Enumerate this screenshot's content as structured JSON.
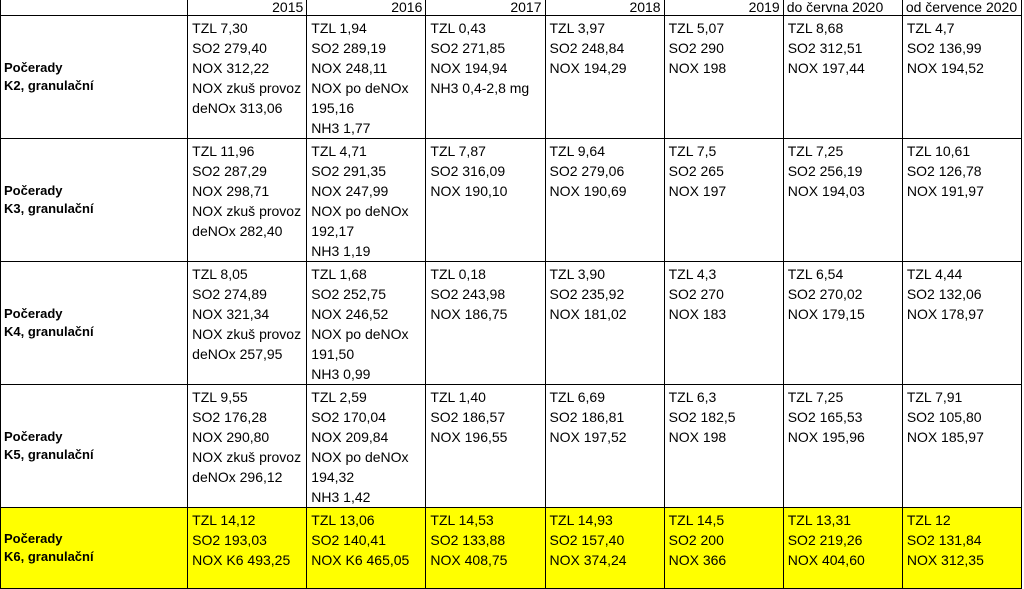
{
  "header": {
    "years": [
      "2015",
      "2016",
      "2017",
      "2018",
      "2019"
    ],
    "period1": "do června 2020",
    "period2": "od července 2020"
  },
  "rows": [
    {
      "label": [
        "Počerady",
        "K2, granulační"
      ],
      "cells": [
        [
          "TZL 7,30",
          "SO2 279,40",
          "NOX 312,22",
          "NOX zkuš provoz",
          "deNOx 313,06"
        ],
        [
          "TZL 1,94",
          "SO2 289,19",
          "NOX 248,11",
          "NOX po deNOx",
          "195,16",
          "NH3 1,77"
        ],
        [
          "TZL 0,43",
          "SO2 271,85",
          "NOX 194,94",
          "NH3 0,4-2,8 mg"
        ],
        [
          "TZL 3,97",
          "SO2 248,84",
          "NOX 194,29"
        ],
        [
          "TZL 5,07",
          "SO2 290",
          "NOX 198"
        ],
        [
          "TZL 8,68",
          "SO2 312,51",
          "NOX 197,44"
        ],
        [
          "TZL 4,7",
          "SO2 136,99",
          "NOX 194,52"
        ]
      ]
    },
    {
      "label": [
        "Počerady",
        "K3, granulační"
      ],
      "cells": [
        [
          "TZL 11,96",
          "SO2 287,29",
          "NOX 298,71",
          "NOX zkuš provoz",
          "deNOx 282,40"
        ],
        [
          "TZL 4,71",
          "SO2 291,35",
          "NOX 247,99",
          "NOX po deNOx",
          "192,17",
          "NH3 1,19"
        ],
        [
          "TZL 7,87",
          "SO2 316,09",
          "NOX 190,10"
        ],
        [
          "TZL 9,64",
          "SO2 279,06",
          "NOX 190,69"
        ],
        [
          "TZL 7,5",
          "SO2 265",
          "NOX 197"
        ],
        [
          "TZL 7,25",
          "SO2 256,19",
          "NOX 194,03"
        ],
        [
          "TZL 10,61",
          "SO2 126,78",
          "NOX 191,97"
        ]
      ]
    },
    {
      "label": [
        "Počerady",
        "K4, granulační"
      ],
      "cells": [
        [
          "TZL 8,05",
          "SO2 274,89",
          "NOX 321,34",
          "NOX zkuš provoz",
          "deNOx 257,95"
        ],
        [
          "TZL 1,68",
          "SO2 252,75",
          "NOX 246,52",
          "NOX po deNOx",
          "191,50",
          "NH3 0,99"
        ],
        [
          "TZL 0,18",
          "SO2 243,98",
          "NOX 186,75"
        ],
        [
          "TZL 3,90",
          "SO2 235,92",
          "NOX 181,02"
        ],
        [
          "TZL 4,3",
          "SO2 270",
          "NOX 183"
        ],
        [
          "TZL 6,54",
          "SO2 270,02",
          "NOX 179,15"
        ],
        [
          "TZL 4,44",
          "SO2 132,06",
          "NOX 178,97"
        ]
      ]
    },
    {
      "label": [
        "Počerady",
        "K5, granulační"
      ],
      "cells": [
        [
          "TZL 9,55",
          "SO2 176,28",
          "NOX 290,80",
          "NOX zkuš provoz",
          "deNOx 296,12"
        ],
        [
          "TZL 2,59",
          "SO2 170,04",
          "NOX 209,84",
          "NOX po deNOx",
          "194,32",
          "NH3 1,42"
        ],
        [
          "TZL 1,40",
          "SO2 186,57",
          "NOX 196,55"
        ],
        [
          "TZL 6,69",
          "SO2 186,81",
          "NOX 197,52"
        ],
        [
          "TZL 6,3",
          "SO2 182,5",
          "NOX 198"
        ],
        [
          "TZL 7,25",
          "SO2 165,53",
          "NOX 195,96"
        ],
        [
          "TZL 7,91",
          "SO2 105,80",
          "NOX 185,97"
        ]
      ]
    },
    {
      "label": [
        "Počerady",
        "K6, granulační"
      ],
      "highlight_color": "#ffff00",
      "cells": [
        [
          "TZL 14,12",
          "SO2 193,03",
          "NOX K6 493,25"
        ],
        [
          "TZL 13,06",
          "SO2 140,41",
          "NOX K6 465,05"
        ],
        [
          "TZL 14,53",
          "SO2 133,88",
          "NOX 408,75"
        ],
        [
          "TZL 14,93",
          "SO2 157,40",
          "NOX 374,24"
        ],
        [
          "TZL 14,5",
          "SO2 200",
          "NOX 366"
        ],
        [
          "TZL 13,31",
          "SO2 219,26",
          "NOX 404,60"
        ],
        [
          "TZL 12",
          "SO2 131,84",
          "NOX 312,35"
        ]
      ]
    }
  ]
}
